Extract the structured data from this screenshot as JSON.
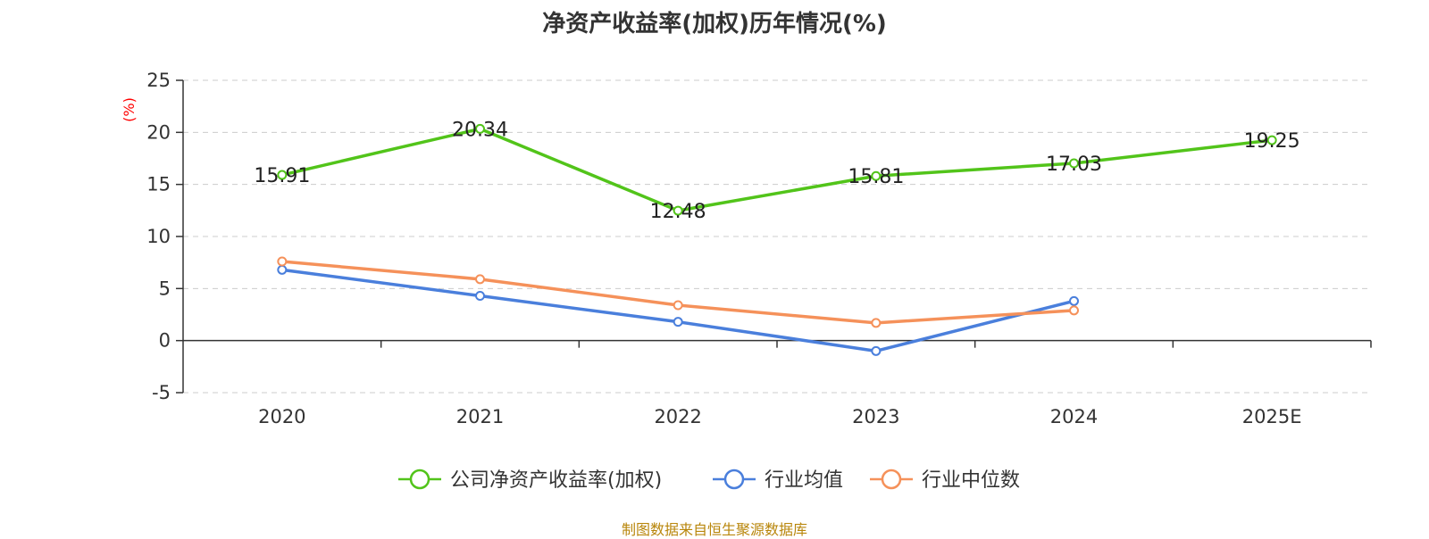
{
  "chart_data": {
    "type": "line",
    "title": "净资产收益率(加权)历年情况(%)",
    "ylabel": "(%)",
    "xlabel": "",
    "categories": [
      "2020",
      "2021",
      "2022",
      "2023",
      "2024",
      "2025E"
    ],
    "ylim": [
      -5,
      25
    ],
    "yticks": [
      "-5",
      "0",
      "5",
      "10",
      "15",
      "20",
      "25"
    ],
    "grid": true,
    "legend_position": "bottom",
    "series": [
      {
        "name": "公司净资产收益率(加权)",
        "color": "#52c41a",
        "values": [
          15.91,
          20.34,
          12.48,
          15.81,
          17.03,
          19.25
        ],
        "labels": [
          "15.91",
          "20.34",
          "12.48",
          "15.81",
          "17.03",
          "19.25"
        ]
      },
      {
        "name": "行业均值",
        "color": "#4a7fdc",
        "values": [
          6.8,
          4.3,
          1.8,
          -1.0,
          3.8,
          null
        ]
      },
      {
        "name": "行业中位数",
        "color": "#f5915a",
        "values": [
          7.6,
          5.9,
          3.4,
          1.7,
          2.9,
          null
        ]
      }
    ],
    "ylabel_color": "#ff0000"
  },
  "footer": {
    "source": "制图数据来自恒生聚源数据库"
  }
}
